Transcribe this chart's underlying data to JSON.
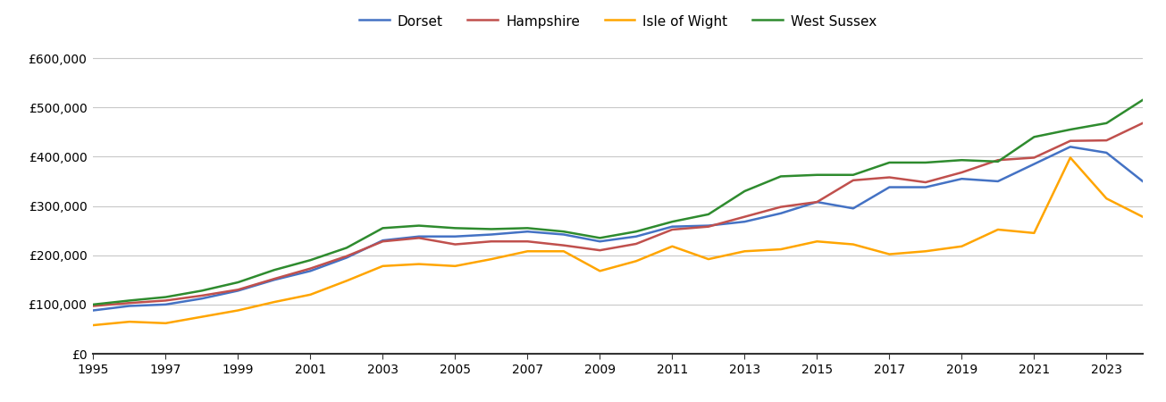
{
  "title": "",
  "legend_entries": [
    "Dorset",
    "Hampshire",
    "Isle of Wight",
    "West Sussex"
  ],
  "colors": {
    "Dorset": "#4472C4",
    "Hampshire": "#C0504D",
    "Isle of Wight": "#FFA500",
    "West Sussex": "#2E8B2E"
  },
  "years": [
    1995,
    1996,
    1997,
    1998,
    1999,
    2000,
    2001,
    2002,
    2003,
    2004,
    2005,
    2006,
    2007,
    2008,
    2009,
    2010,
    2011,
    2012,
    2013,
    2014,
    2015,
    2016,
    2017,
    2018,
    2019,
    2020,
    2021,
    2022,
    2023,
    2024
  ],
  "Dorset": [
    88000,
    97000,
    100000,
    112000,
    128000,
    150000,
    168000,
    195000,
    230000,
    238000,
    238000,
    242000,
    248000,
    242000,
    228000,
    238000,
    258000,
    260000,
    268000,
    285000,
    308000,
    295000,
    338000,
    338000,
    355000,
    350000,
    385000,
    420000,
    408000,
    350000
  ],
  "Hampshire": [
    97000,
    103000,
    108000,
    118000,
    130000,
    152000,
    173000,
    198000,
    228000,
    235000,
    222000,
    228000,
    228000,
    220000,
    210000,
    223000,
    252000,
    258000,
    278000,
    298000,
    308000,
    352000,
    358000,
    348000,
    368000,
    393000,
    398000,
    432000,
    433000,
    468000
  ],
  "Isle of Wight": [
    58000,
    65000,
    62000,
    75000,
    88000,
    105000,
    120000,
    148000,
    178000,
    182000,
    178000,
    192000,
    208000,
    208000,
    168000,
    188000,
    218000,
    192000,
    208000,
    212000,
    228000,
    222000,
    202000,
    208000,
    218000,
    252000,
    245000,
    398000,
    315000,
    278000
  ],
  "West Sussex": [
    100000,
    108000,
    115000,
    128000,
    145000,
    170000,
    190000,
    215000,
    255000,
    260000,
    255000,
    253000,
    255000,
    248000,
    235000,
    248000,
    268000,
    283000,
    330000,
    360000,
    363000,
    363000,
    388000,
    388000,
    393000,
    390000,
    440000,
    455000,
    468000,
    515000
  ],
  "ylim": [
    0,
    620000
  ],
  "yticks": [
    0,
    100000,
    200000,
    300000,
    400000,
    500000,
    600000
  ],
  "background_color": "#ffffff",
  "grid_color": "#c8c8c8"
}
